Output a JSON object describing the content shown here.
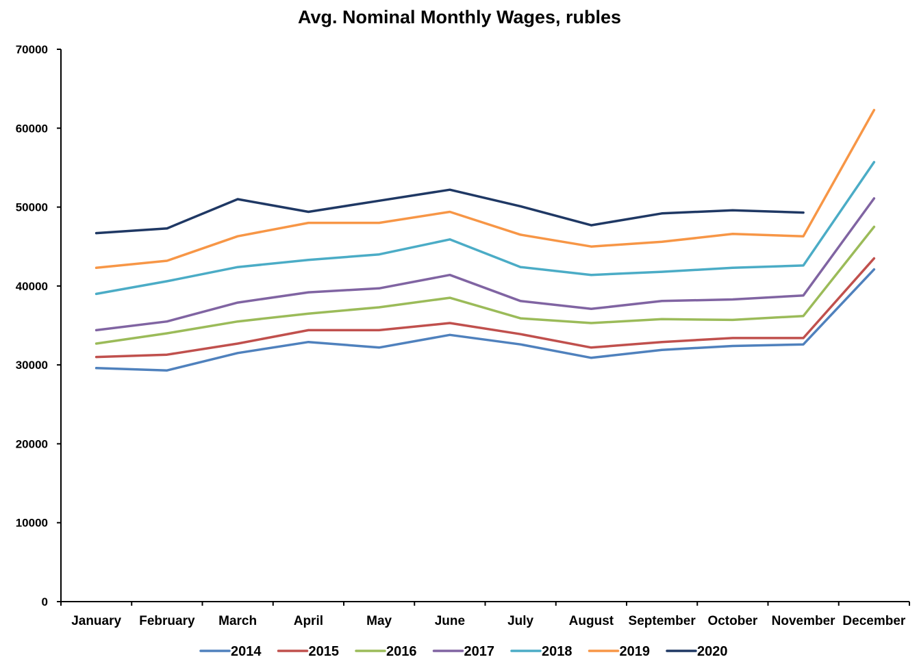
{
  "chart_data": {
    "type": "line",
    "title": "Avg. Nominal Monthly Wages, rubles",
    "xlabel": "",
    "ylabel": "",
    "ylim": [
      0,
      70000
    ],
    "yticks": [
      0,
      10000,
      20000,
      30000,
      40000,
      50000,
      60000,
      70000
    ],
    "grid": false,
    "legend_position": "bottom",
    "categories": [
      "January",
      "February",
      "March",
      "April",
      "May",
      "June",
      "July",
      "August",
      "September",
      "October",
      "November",
      "December"
    ],
    "series": [
      {
        "name": "2014",
        "color": "#4F81BD",
        "values": [
          29600,
          29300,
          31500,
          32900,
          32200,
          33800,
          32600,
          30900,
          31900,
          32400,
          32600,
          42100
        ]
      },
      {
        "name": "2015",
        "color": "#C0504D",
        "values": [
          31000,
          31300,
          32700,
          34400,
          34400,
          35300,
          33900,
          32200,
          32900,
          33400,
          33400,
          43500
        ]
      },
      {
        "name": "2016",
        "color": "#9BBB59",
        "values": [
          32700,
          34000,
          35500,
          36500,
          37300,
          38500,
          35900,
          35300,
          35800,
          35700,
          36200,
          47500
        ]
      },
      {
        "name": "2017",
        "color": "#8064A2",
        "values": [
          34400,
          35500,
          37900,
          39200,
          39700,
          41400,
          38100,
          37100,
          38100,
          38300,
          38800,
          51100
        ]
      },
      {
        "name": "2018",
        "color": "#4BACC6",
        "values": [
          39000,
          40600,
          42400,
          43300,
          44000,
          45900,
          42400,
          41400,
          41800,
          42300,
          42600,
          55700
        ]
      },
      {
        "name": "2019",
        "color": "#F79646",
        "values": [
          42300,
          43200,
          46300,
          48000,
          48000,
          49400,
          46500,
          45000,
          45600,
          46600,
          46300,
          62300
        ]
      },
      {
        "name": "2020",
        "color": "#1F3864",
        "values": [
          46700,
          47300,
          51000,
          49400,
          50800,
          52200,
          50100,
          47700,
          49200,
          49600,
          49300,
          null
        ]
      }
    ]
  }
}
